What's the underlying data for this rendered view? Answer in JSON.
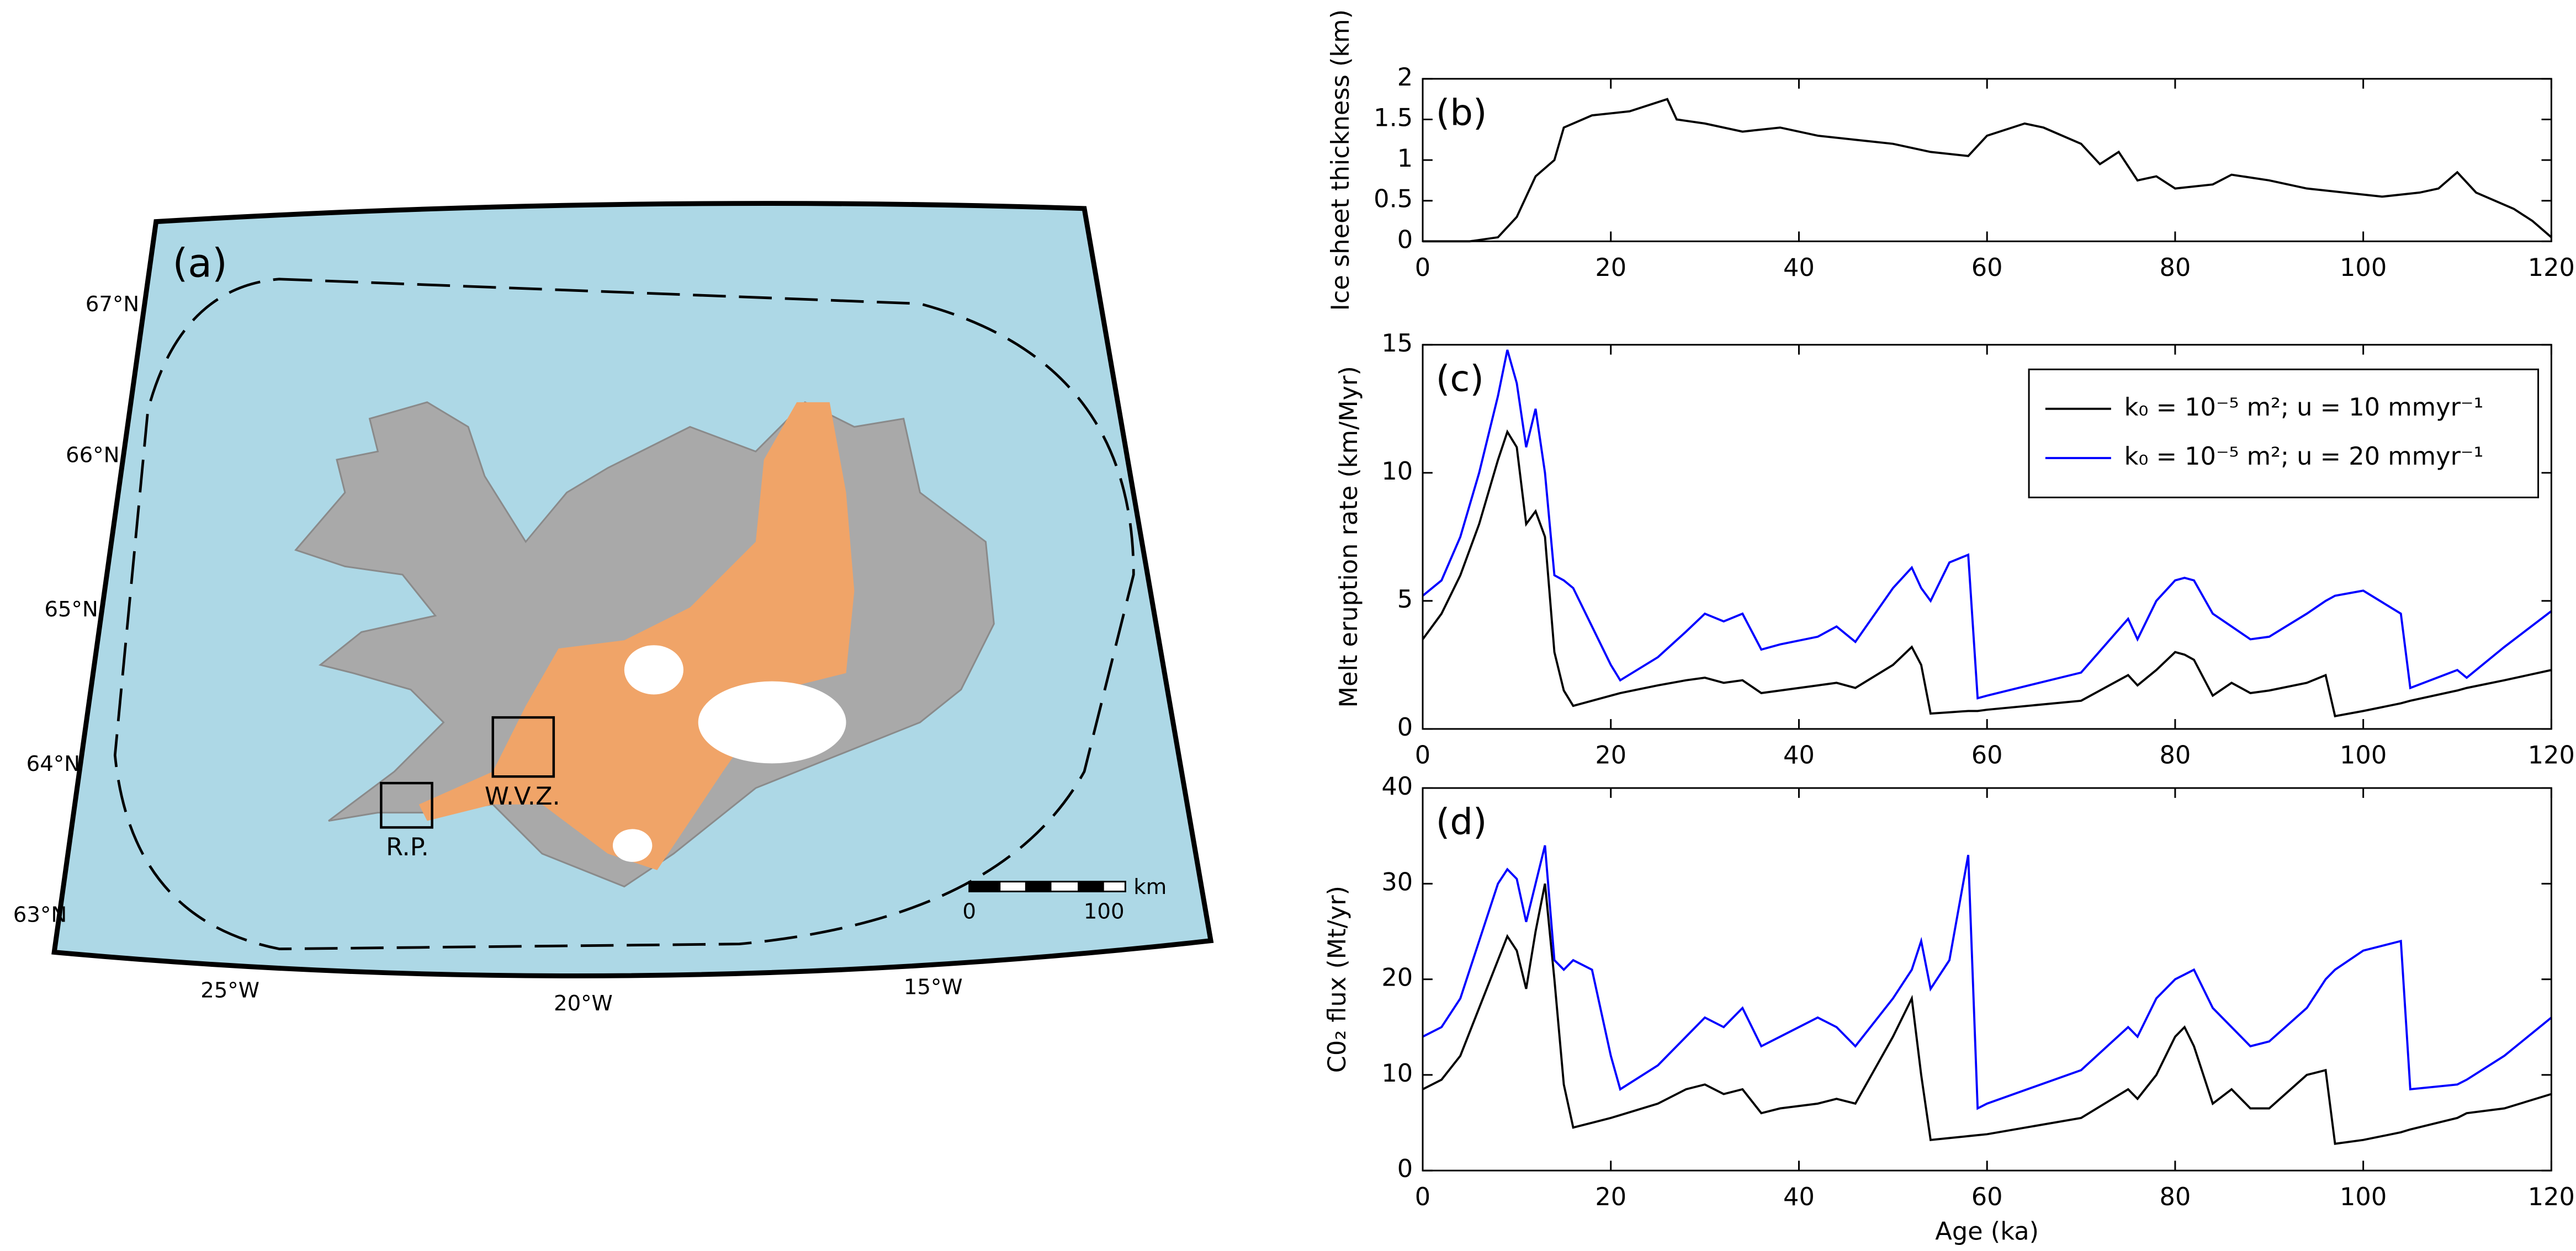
{
  "map": {
    "panel_label": "(a)",
    "lat_labels": [
      "67°N",
      "66°N",
      "65°N",
      "64°N",
      "63°N"
    ],
    "lon_labels": [
      "25°W",
      "20°W",
      "15°W"
    ],
    "regions": [
      "W.V.Z.",
      "R.P."
    ],
    "scale_bar": {
      "labels": [
        "0",
        "100"
      ],
      "unit": "km"
    }
  },
  "chart_data": [
    {
      "type": "line",
      "panel_label": "(b)",
      "ylabel": "Ice sheet thickness (km)",
      "x": [
        0,
        5,
        8,
        10,
        12,
        14,
        15,
        18,
        22,
        26,
        27,
        30,
        34,
        38,
        42,
        46,
        50,
        54,
        58,
        60,
        64,
        66,
        70,
        72,
        74,
        76,
        78,
        80,
        84,
        86,
        90,
        94,
        98,
        102,
        106,
        108,
        110,
        112,
        116,
        118,
        120
      ],
      "series": [
        {
          "color": "#000000",
          "values": [
            0,
            0,
            0.05,
            0.3,
            0.8,
            1.0,
            1.4,
            1.55,
            1.6,
            1.75,
            1.5,
            1.45,
            1.35,
            1.4,
            1.3,
            1.25,
            1.2,
            1.1,
            1.05,
            1.3,
            1.45,
            1.4,
            1.2,
            0.95,
            1.1,
            0.75,
            0.8,
            0.65,
            0.7,
            0.82,
            0.75,
            0.65,
            0.6,
            0.55,
            0.6,
            0.65,
            0.85,
            0.6,
            0.4,
            0.25,
            0.05
          ]
        }
      ],
      "xlim": [
        0,
        120
      ],
      "xticks": [
        0,
        20,
        40,
        60,
        80,
        100,
        120
      ],
      "ylim": [
        0,
        2
      ],
      "yticks": [
        0,
        0.5,
        1,
        1.5,
        2
      ]
    },
    {
      "type": "line",
      "panel_label": "(c)",
      "ylabel": "Melt eruption rate (km/Myr)",
      "x": [
        0,
        2,
        4,
        6,
        8,
        9,
        10,
        11,
        12,
        13,
        14,
        15,
        16,
        18,
        20,
        21,
        25,
        28,
        30,
        32,
        34,
        36,
        38,
        42,
        44,
        46,
        50,
        52,
        53,
        54,
        56,
        58,
        59,
        60,
        70,
        75,
        76,
        78,
        80,
        81,
        82,
        84,
        86,
        88,
        90,
        94,
        96,
        97,
        100,
        104,
        105,
        110,
        111,
        115,
        120
      ],
      "series": [
        {
          "name": "k₀ = 10⁻⁵ m²; u = 10 mmyr⁻¹",
          "color": "#000000",
          "values": [
            3.5,
            4.5,
            6,
            8,
            10.5,
            11.6,
            11,
            8,
            8.5,
            7.5,
            3,
            1.5,
            0.9,
            1.1,
            1.3,
            1.4,
            1.7,
            1.9,
            2,
            1.8,
            1.9,
            1.4,
            1.5,
            1.7,
            1.8,
            1.6,
            2.5,
            3.2,
            2.5,
            0.6,
            0.65,
            0.7,
            0.7,
            0.75,
            1.1,
            2.1,
            1.7,
            2.3,
            3,
            2.9,
            2.7,
            1.3,
            1.8,
            1.4,
            1.5,
            1.8,
            2.1,
            0.5,
            0.7,
            1.0,
            1.1,
            1.5,
            1.6,
            1.9,
            2.3
          ]
        },
        {
          "name": "k₀ = 10⁻⁵ m²; u = 20 mmyr⁻¹",
          "color": "#0000ff",
          "values": [
            5.2,
            5.8,
            7.5,
            10,
            13,
            14.8,
            13.5,
            11,
            12.5,
            10,
            6,
            5.8,
            5.5,
            4,
            2.5,
            1.9,
            2.8,
            3.8,
            4.5,
            4.2,
            4.5,
            3.1,
            3.3,
            3.6,
            4,
            3.4,
            5.5,
            6.3,
            5.5,
            5,
            6.5,
            6.8,
            1.2,
            1.3,
            2.2,
            4.3,
            3.5,
            5,
            5.8,
            5.9,
            5.8,
            4.5,
            4,
            3.5,
            3.6,
            4.5,
            5,
            5.2,
            5.4,
            4.5,
            1.6,
            2.3,
            2,
            3.2,
            4.6
          ]
        }
      ],
      "legend": "upper right",
      "xlim": [
        0,
        120
      ],
      "xticks": [
        0,
        20,
        40,
        60,
        80,
        100,
        120
      ],
      "ylim": [
        0,
        15
      ],
      "yticks": [
        0,
        5,
        10,
        15
      ]
    },
    {
      "type": "line",
      "panel_label": "(d)",
      "ylabel": "C0₂ flux (Mt/yr)",
      "xlabel": "Age (ka)",
      "x": [
        0,
        2,
        4,
        6,
        8,
        9,
        10,
        11,
        12,
        13,
        14,
        15,
        16,
        18,
        20,
        21,
        25,
        28,
        30,
        32,
        34,
        36,
        38,
        42,
        44,
        46,
        50,
        52,
        53,
        54,
        56,
        58,
        59,
        60,
        70,
        75,
        76,
        78,
        80,
        81,
        82,
        84,
        86,
        88,
        90,
        94,
        96,
        97,
        100,
        104,
        105,
        110,
        111,
        115,
        120
      ],
      "series": [
        {
          "color": "#000000",
          "values": [
            8.5,
            9.5,
            12,
            17,
            22,
            24.5,
            23,
            19,
            25,
            30,
            20,
            9,
            4.5,
            5,
            5.5,
            5.8,
            7,
            8.5,
            9,
            8,
            8.5,
            6,
            6.5,
            7,
            7.5,
            7,
            14,
            18,
            10,
            3.2,
            3.4,
            3.6,
            3.7,
            3.8,
            5.5,
            8.5,
            7.5,
            10,
            14,
            15,
            13,
            7,
            8.5,
            6.5,
            6.5,
            10,
            10.5,
            2.8,
            3.2,
            4,
            4.3,
            5.5,
            6,
            6.5,
            8
          ]
        },
        {
          "color": "#0000ff",
          "values": [
            14,
            15,
            18,
            24,
            30,
            31.5,
            30.5,
            26,
            30,
            34,
            22,
            21,
            22,
            21,
            12,
            8.5,
            11,
            14,
            16,
            15,
            17,
            13,
            14,
            16,
            15,
            13,
            18,
            21,
            24,
            19,
            22,
            33,
            6.5,
            7,
            10.5,
            15,
            14,
            18,
            20,
            20.5,
            21,
            17,
            15,
            13,
            13.5,
            17,
            20,
            21,
            23,
            24,
            8.5,
            9,
            9.5,
            12,
            16
          ]
        }
      ],
      "xlim": [
        0,
        120
      ],
      "xticks": [
        0,
        20,
        40,
        60,
        80,
        100,
        120
      ],
      "ylim": [
        0,
        40
      ],
      "yticks": [
        0,
        10,
        20,
        30,
        40
      ]
    }
  ]
}
